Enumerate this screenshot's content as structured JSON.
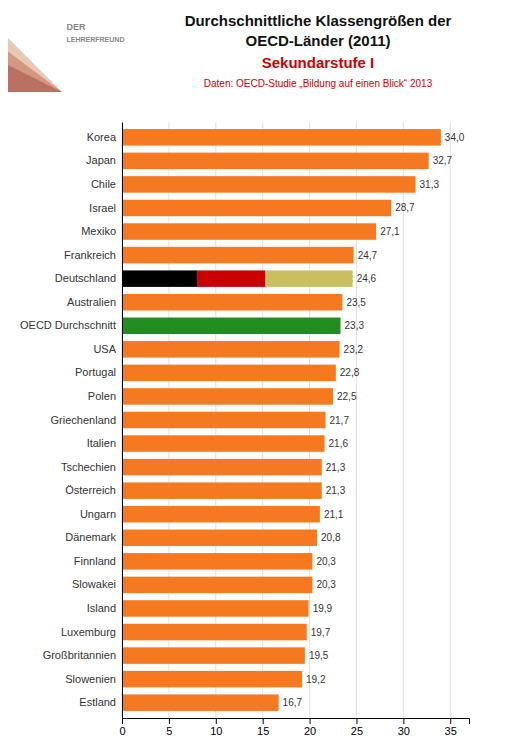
{
  "chart_data": {
    "type": "bar",
    "orientation": "horizontal",
    "title": "Durchschnittliche Klassengrößen der OECD-Länder (2011)",
    "subtitle": "Sekundarstufe I",
    "annotations": [
      "DER",
      "LEHRERFREUND",
      "Daten: OECD-Studie „Bildung auf einen Blick“ 2013"
    ],
    "categories": [
      "Korea",
      "Japan",
      "Chile",
      "Israel",
      "Mexiko",
      "Frankreich",
      "Deutschland",
      "Australien",
      "OECD Durchschnitt",
      "USA",
      "Portugal",
      "Polen",
      "Griechenland",
      "Italien",
      "Tschechien",
      "Österreich",
      "Ungarn",
      "Dänemark",
      "Finnland",
      "Slowakei",
      "Island",
      "Luxemburg",
      "Großbritannien",
      "Slowenien",
      "Estland"
    ],
    "values": [
      34.0,
      32.7,
      31.3,
      28.7,
      27.1,
      24.7,
      24.6,
      23.5,
      23.3,
      23.2,
      22.8,
      22.5,
      21.7,
      21.6,
      21.3,
      21.3,
      21.1,
      20.8,
      20.3,
      20.3,
      19.9,
      19.7,
      19.5,
      19.2,
      16.7
    ],
    "value_labels": [
      "34,0",
      "32,7",
      "31,3",
      "28,7",
      "27,1",
      "24,7",
      "24,6",
      "23,5",
      "23,3",
      "23,2",
      "22,8",
      "22,5",
      "21,7",
      "21,6",
      "21,3",
      "21,3",
      "21,1",
      "20,8",
      "20,3",
      "20,3",
      "19,9",
      "19,7",
      "19,5",
      "19,2",
      "16,7"
    ],
    "colors": [
      "#F47920",
      "#F47920",
      "#F47920",
      "#F47920",
      "#F47920",
      "#F47920",
      null,
      "#F47920",
      "#228B22",
      "#F47920",
      "#F47920",
      "#F47920",
      "#F47920",
      "#F47920",
      "#F47920",
      "#F47920",
      "#F47920",
      "#F47920",
      "#F47920",
      "#F47920",
      "#F47920",
      "#F47920",
      "#F47920",
      "#F47920",
      "#F47920"
    ],
    "segments": [
      null,
      null,
      null,
      null,
      null,
      null,
      {
        "values": [
          8.0,
          7.3,
          9.3
        ],
        "colors": [
          "#000000",
          "#CC0000",
          "#C8C060"
        ]
      },
      null,
      null,
      null,
      null,
      null,
      null,
      null,
      null,
      null,
      null,
      null,
      null,
      null,
      null,
      null,
      null,
      null,
      null
    ],
    "data_labels": true,
    "xlim": [
      0,
      37
    ],
    "xticks": [
      0,
      5,
      10,
      15,
      20,
      25,
      30,
      35
    ],
    "grid": true
  }
}
